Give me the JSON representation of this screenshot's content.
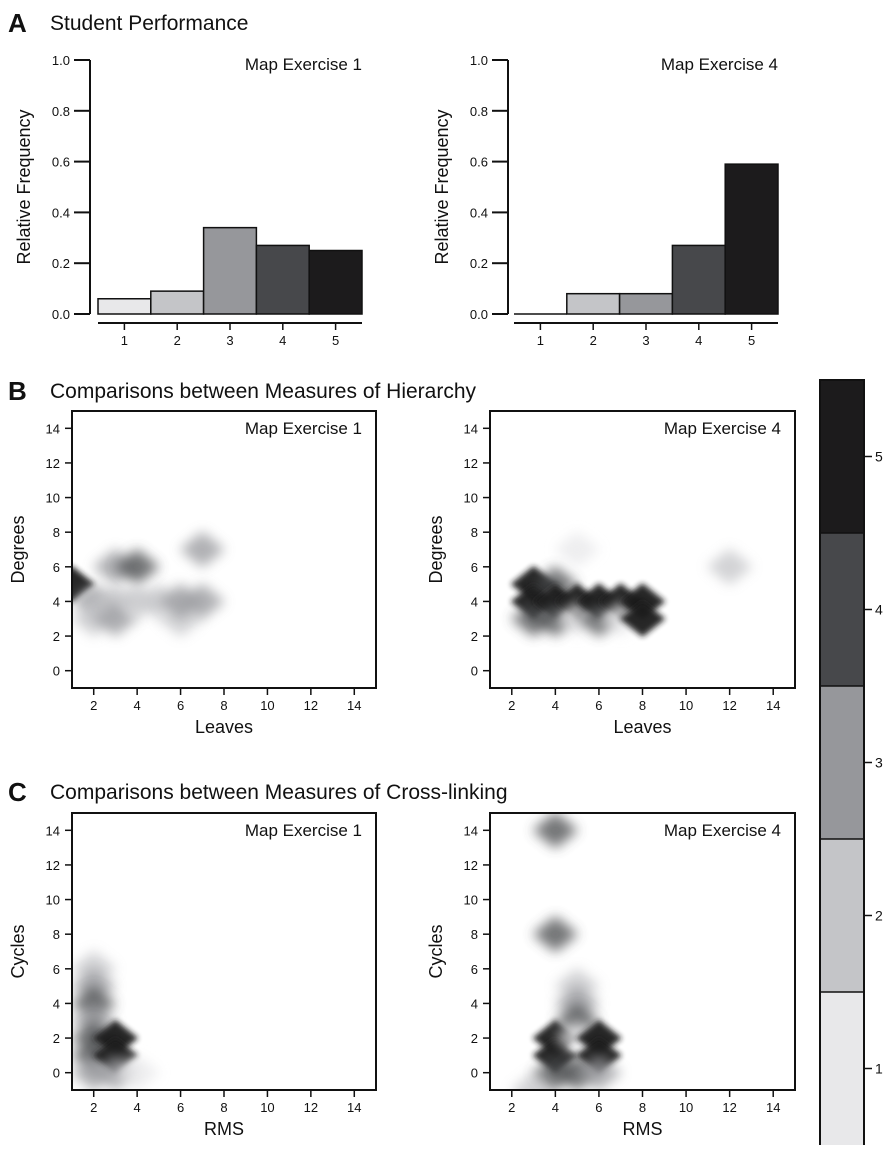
{
  "sections": {
    "a": {
      "letter": "A",
      "title": "Student Performance"
    },
    "b": {
      "letter": "B",
      "title": "Comparisons between Measures of Hierarchy"
    },
    "c": {
      "letter": "C",
      "title": "Comparisons between Measures of Cross-linking"
    }
  },
  "grey_scale": [
    "#e8e8ea",
    "#c4c5c8",
    "#96979b",
    "#47484b",
    "#1c1b1c"
  ],
  "chart_data": [
    {
      "id": "a1",
      "type": "bar",
      "title": "Map Exercise 1",
      "xlabel": "",
      "ylabel": "Relative Frequency",
      "categories": [
        "1",
        "2",
        "3",
        "4",
        "5"
      ],
      "values": [
        0.06,
        0.09,
        0.34,
        0.27,
        0.25
      ],
      "ylim": [
        0,
        1.0
      ],
      "yticks": [
        "0.0",
        "0.2",
        "0.4",
        "0.6",
        "0.8",
        "1.0"
      ]
    },
    {
      "id": "a4",
      "type": "bar",
      "title": "Map Exercise 4",
      "xlabel": "",
      "ylabel": "Relative Frequency",
      "categories": [
        "1",
        "2",
        "3",
        "4",
        "5"
      ],
      "values": [
        0.0,
        0.08,
        0.08,
        0.27,
        0.59
      ],
      "ylim": [
        0,
        1.0
      ],
      "yticks": [
        "0.0",
        "0.2",
        "0.4",
        "0.6",
        "0.8",
        "1.0"
      ]
    },
    {
      "id": "b1",
      "type": "heatmap",
      "title": "Map Exercise 1",
      "xlabel": "Leaves",
      "ylabel": "Degrees",
      "xlim": [
        1,
        15
      ],
      "ylim": [
        -1,
        15
      ],
      "xticks": [
        2,
        4,
        6,
        8,
        10,
        12,
        14
      ],
      "yticks": [
        0,
        2,
        4,
        6,
        8,
        10,
        12,
        14
      ],
      "points": [
        {
          "x": 1,
          "y": 5,
          "level": 5
        },
        {
          "x": 2,
          "y": 4,
          "level": 3
        },
        {
          "x": 2,
          "y": 3,
          "level": 2
        },
        {
          "x": 3,
          "y": 6,
          "level": 3
        },
        {
          "x": 3,
          "y": 4,
          "level": 2
        },
        {
          "x": 3,
          "y": 3,
          "level": 3
        },
        {
          "x": 4,
          "y": 6,
          "level": 4
        },
        {
          "x": 4,
          "y": 4,
          "level": 2
        },
        {
          "x": 5,
          "y": 4,
          "level": 2
        },
        {
          "x": 6,
          "y": 3,
          "level": 2
        },
        {
          "x": 6,
          "y": 4,
          "level": 3
        },
        {
          "x": 7,
          "y": 4,
          "level": 3
        },
        {
          "x": 7,
          "y": 7,
          "level": 3
        }
      ]
    },
    {
      "id": "b4",
      "type": "heatmap",
      "title": "Map Exercise 4",
      "xlabel": "Leaves",
      "ylabel": "Degrees",
      "xlim": [
        1,
        15
      ],
      "ylim": [
        -1,
        15
      ],
      "xticks": [
        2,
        4,
        6,
        8,
        10,
        12,
        14
      ],
      "yticks": [
        0,
        2,
        4,
        6,
        8,
        10,
        12,
        14
      ],
      "points": [
        {
          "x": 3,
          "y": 5,
          "level": 5
        },
        {
          "x": 3,
          "y": 4,
          "level": 5
        },
        {
          "x": 3,
          "y": 3,
          "level": 4
        },
        {
          "x": 4,
          "y": 5,
          "level": 4
        },
        {
          "x": 4,
          "y": 4,
          "level": 5
        },
        {
          "x": 4,
          "y": 3,
          "level": 4
        },
        {
          "x": 5,
          "y": 7,
          "level": 1
        },
        {
          "x": 5,
          "y": 4,
          "level": 5
        },
        {
          "x": 5,
          "y": 3,
          "level": 1
        },
        {
          "x": 6,
          "y": 4,
          "level": 5
        },
        {
          "x": 6,
          "y": 3,
          "level": 4
        },
        {
          "x": 7,
          "y": 4,
          "level": 5
        },
        {
          "x": 7,
          "y": 3,
          "level": 1
        },
        {
          "x": 8,
          "y": 4,
          "level": 5
        },
        {
          "x": 8,
          "y": 3,
          "level": 5
        },
        {
          "x": 12,
          "y": 6,
          "level": 2
        }
      ]
    },
    {
      "id": "c1",
      "type": "heatmap",
      "title": "Map Exercise 1",
      "xlabel": "RMS",
      "ylabel": "Cycles",
      "xlim": [
        1,
        15
      ],
      "ylim": [
        -1,
        15
      ],
      "xticks": [
        2,
        4,
        6,
        8,
        10,
        12,
        14
      ],
      "yticks": [
        0,
        2,
        4,
        6,
        8,
        10,
        12,
        14
      ],
      "points": [
        {
          "x": 2,
          "y": 6,
          "level": 2
        },
        {
          "x": 2,
          "y": 5,
          "level": 3
        },
        {
          "x": 2,
          "y": 4,
          "level": 4
        },
        {
          "x": 2,
          "y": 3,
          "level": 3
        },
        {
          "x": 2,
          "y": 2,
          "level": 4
        },
        {
          "x": 2,
          "y": 1,
          "level": 4
        },
        {
          "x": 2,
          "y": 0,
          "level": 3
        },
        {
          "x": 3,
          "y": 2,
          "level": 5
        },
        {
          "x": 3,
          "y": 1,
          "level": 5
        },
        {
          "x": 3,
          "y": 0,
          "level": 3
        },
        {
          "x": 4,
          "y": 0,
          "level": 1
        }
      ]
    },
    {
      "id": "c4",
      "type": "heatmap",
      "title": "Map Exercise 4",
      "xlabel": "RMS",
      "ylabel": "Cycles",
      "xlim": [
        1,
        15
      ],
      "ylim": [
        -1,
        15
      ],
      "xticks": [
        2,
        4,
        6,
        8,
        10,
        12,
        14
      ],
      "yticks": [
        0,
        2,
        4,
        6,
        8,
        10,
        12,
        14
      ],
      "points": [
        {
          "x": 4,
          "y": 14,
          "level": 4
        },
        {
          "x": 4,
          "y": 8,
          "level": 4
        },
        {
          "x": 3,
          "y": -1,
          "level": 2
        },
        {
          "x": 4,
          "y": 2,
          "level": 5
        },
        {
          "x": 4,
          "y": 1,
          "level": 5
        },
        {
          "x": 4,
          "y": 0,
          "level": 4
        },
        {
          "x": 5,
          "y": 5,
          "level": 2
        },
        {
          "x": 5,
          "y": 4,
          "level": 3
        },
        {
          "x": 5,
          "y": 3,
          "level": 4
        },
        {
          "x": 5,
          "y": 2,
          "level": 1
        },
        {
          "x": 5,
          "y": 0,
          "level": 4
        },
        {
          "x": 6,
          "y": 2,
          "level": 5
        },
        {
          "x": 6,
          "y": 1,
          "level": 5
        },
        {
          "x": 6,
          "y": 0,
          "level": 3
        }
      ]
    },
    {
      "id": "legend",
      "type": "colorbar",
      "labels": [
        "1",
        "2",
        "3",
        "4",
        "5"
      ]
    }
  ]
}
